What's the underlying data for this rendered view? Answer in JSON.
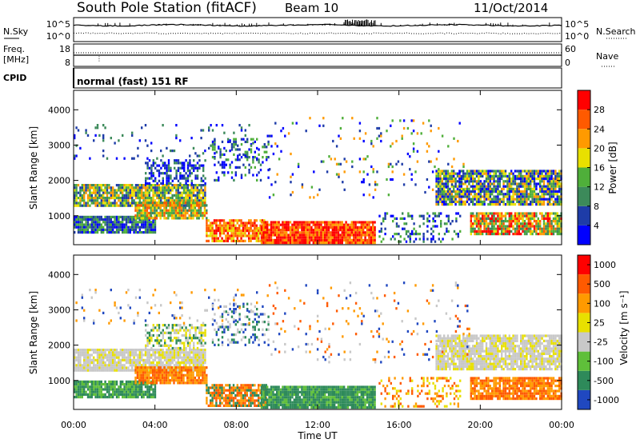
{
  "header": {
    "station": "South Pole Station (fitACF)",
    "beam": "Beam 10",
    "date": "11/Oct/2014"
  },
  "nsky": {
    "left_label": "N.Sky",
    "right_label": "N.Search",
    "left_ticks": [
      "10^5",
      "10^0"
    ],
    "right_ticks": [
      "10^5",
      "10^0"
    ]
  },
  "freq": {
    "label_top": "Freq.",
    "label_unit": "[MHz]",
    "left_ticks": [
      "18",
      "8"
    ],
    "right_ticks": [
      "60",
      "0"
    ],
    "right_label": "Nave"
  },
  "cpid": {
    "label": "CPID",
    "mode": "normal (fast) 151 RF"
  },
  "colors": {
    "power_scale": [
      "#0000ff",
      "#1e3ca8",
      "#3c8a5a",
      "#4faf3a",
      "#e8e000",
      "#ff9a00",
      "#ff5a00",
      "#ff0000"
    ],
    "velocity_scale": [
      "#2048c0",
      "#2e8a5a",
      "#5fbf3a",
      "#c8c8c8",
      "#e8e000",
      "#ff9a00",
      "#ff5a00",
      "#ff0000"
    ]
  },
  "chart_data": [
    {
      "type": "heatmap",
      "name": "power",
      "ylabel": "Slant Range [km]",
      "yticks": [
        "1000",
        "2000",
        "3000",
        "4000"
      ],
      "ylim": [
        180,
        4550
      ],
      "x": [
        "00:00",
        "04:00",
        "08:00",
        "12:00",
        "16:00",
        "20:00",
        "00:00"
      ],
      "colorbar": {
        "label": "Power [dB]",
        "ticks": [
          "28",
          "24",
          "20",
          "16",
          "12",
          "8",
          "4"
        ]
      }
    },
    {
      "type": "heatmap",
      "name": "velocity",
      "ylabel": "Slant Range [km]",
      "yticks": [
        "1000",
        "2000",
        "3000",
        "4000"
      ],
      "ylim": [
        180,
        4550
      ],
      "x": [
        "00:00",
        "04:00",
        "08:00",
        "12:00",
        "16:00",
        "20:00",
        "00:00"
      ],
      "xlabel": "Time UT",
      "colorbar": {
        "label": "Velocity [m s⁻¹]",
        "ticks": [
          "1000",
          "500",
          "100",
          "25",
          "-25",
          "-100",
          "-500",
          "-1000"
        ]
      }
    }
  ]
}
